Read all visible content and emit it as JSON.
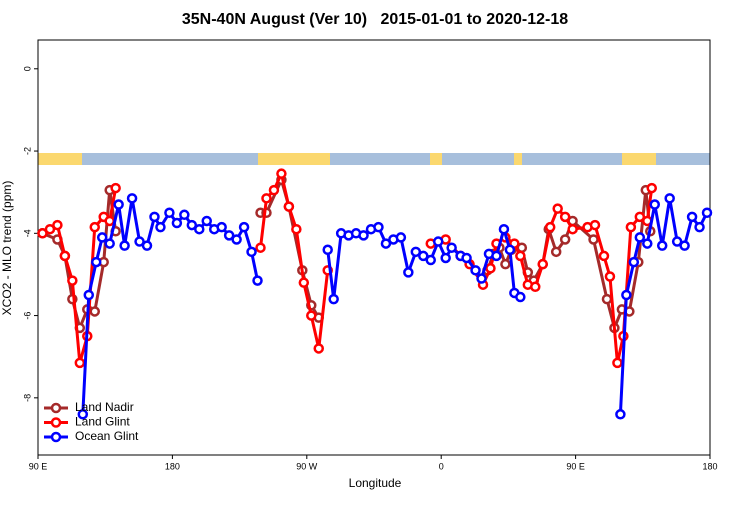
{
  "chart_data": {
    "type": "line",
    "title": "35N-40N August (Ver 10)   2015-01-01 to 2020-12-18",
    "x_label": "Longitude",
    "y_label": "XCO2 - MLO trend (ppm)",
    "xlim": [
      90,
      540
    ],
    "xticks": [
      {
        "value": 90,
        "label": "90 E"
      },
      180,
      {
        "value": 270,
        "label": "90 W"
      },
      {
        "value": 360,
        "label": "0"
      },
      {
        "value": 450,
        "label": "90 E"
      },
      180
    ],
    "ylim": [
      -9.39,
      0.7
    ],
    "yticks": [
      0,
      -2,
      -4,
      -6,
      -8
    ],
    "legend": "bottomleft",
    "series": [
      {
        "name": "Land Nadir",
        "color": "#a52a2a",
        "x": [
          93,
          103,
          108,
          113,
          118,
          123,
          128,
          134,
          138,
          142,
          null,
          239,
          243,
          253,
          258,
          267,
          273,
          278,
          null,
          391,
          395,
          399,
          403,
          407,
          414,
          418,
          422,
          428,
          432,
          437,
          443,
          448,
          462,
          471,
          476,
          481,
          486,
          492,
          497,
          500
        ],
        "values": [
          -4.0,
          -4.15,
          -4.55,
          -5.6,
          -6.3,
          -5.85,
          -5.9,
          -4.7,
          -2.95,
          -3.95,
          null,
          -3.5,
          -3.5,
          -2.7,
          -3.35,
          -4.9,
          -5.75,
          -6.05,
          null,
          -4.9,
          -4.5,
          -4.35,
          -4.75,
          -4.4,
          -4.35,
          -4.95,
          -5.15,
          -4.75,
          -3.9,
          -4.45,
          -4.15,
          -3.7,
          -4.15,
          -5.6,
          -6.3,
          -5.85,
          -5.9,
          -4.7,
          -2.95,
          -3.95
        ]
      },
      {
        "name": "Land Glint",
        "color": "#ff0000",
        "x": [
          93,
          98,
          103,
          108,
          113,
          118,
          123,
          128,
          134,
          138,
          142,
          null,
          239,
          243,
          248,
          253,
          258,
          263,
          268,
          273,
          278,
          284,
          null,
          353,
          363,
          373,
          379,
          388,
          393,
          397,
          403,
          409,
          413,
          418,
          423,
          428,
          433,
          438,
          443,
          448,
          458,
          463,
          469,
          473,
          478,
          482,
          487,
          493,
          498,
          501
        ],
        "values": [
          -4.0,
          -3.9,
          -3.8,
          -4.55,
          -5.15,
          -7.15,
          -6.5,
          -3.85,
          -3.6,
          -3.7,
          -2.9,
          null,
          -4.35,
          -3.15,
          -2.95,
          -2.55,
          -3.35,
          -3.9,
          -5.2,
          -6.0,
          -6.8,
          -4.9,
          null,
          -4.25,
          -4.15,
          -4.55,
          -4.75,
          -5.25,
          -4.85,
          -4.25,
          -4.1,
          -4.25,
          -4.55,
          -5.25,
          -5.3,
          -4.75,
          -3.85,
          -3.4,
          -3.6,
          -3.9,
          -3.85,
          -3.8,
          -4.55,
          -5.05,
          -7.15,
          -6.5,
          -3.85,
          -3.6,
          -3.7,
          -2.9
        ]
      },
      {
        "name": "Ocean Glint",
        "color": "#0000ff",
        "x": [
          120,
          124,
          129,
          133,
          138,
          144,
          148,
          153,
          158,
          163,
          168,
          172,
          178,
          183,
          188,
          193,
          198,
          203,
          208,
          213,
          218,
          223,
          228,
          233,
          237,
          null,
          284,
          288,
          293,
          298,
          303,
          308,
          313,
          318,
          323,
          328,
          333,
          338,
          343,
          348,
          353,
          358,
          363,
          367,
          373,
          377,
          383,
          387,
          392,
          397,
          402,
          406,
          409,
          413,
          null,
          480,
          484,
          489,
          493,
          498,
          503,
          508,
          513,
          518,
          523,
          528,
          533,
          538
        ],
        "values": [
          -8.4,
          -5.5,
          -4.7,
          -4.1,
          -4.25,
          -3.3,
          -4.3,
          -3.15,
          -4.2,
          -4.3,
          -3.6,
          -3.85,
          -3.5,
          -3.75,
          -3.55,
          -3.8,
          -3.9,
          -3.7,
          -3.9,
          -3.85,
          -4.05,
          -4.15,
          -3.85,
          -4.45,
          -5.15,
          null,
          -4.4,
          -5.6,
          -4.0,
          -4.05,
          -4.0,
          -4.05,
          -3.9,
          -3.85,
          -4.25,
          -4.15,
          -4.1,
          -4.95,
          -4.45,
          -4.55,
          -4.65,
          -4.2,
          -4.6,
          -4.35,
          -4.55,
          -4.6,
          -4.9,
          -5.1,
          -4.5,
          -4.55,
          -3.9,
          -4.4,
          -5.45,
          -5.55,
          null,
          -8.4,
          -5.5,
          -4.7,
          -4.1,
          -4.25,
          -3.3,
          -4.3,
          -3.15,
          -4.2,
          -4.3,
          -3.6,
          -3.85,
          -3.5
        ]
      }
    ]
  }
}
